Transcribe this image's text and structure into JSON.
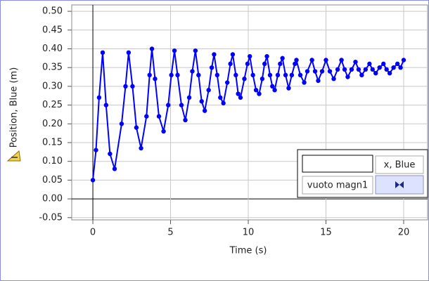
{
  "chart_data": {
    "type": "line",
    "x_label": "Time (s)",
    "y_label": "Position, Blue (m)",
    "xlim": [
      -1.36,
      21.54
    ],
    "ylim": [
      -0.056,
      0.517
    ],
    "xticks": [
      0,
      5,
      10,
      15,
      20
    ],
    "yticks": [
      {
        "value": -0.05,
        "label": "-0.05"
      },
      {
        "value": 0,
        "label": "0.00"
      },
      {
        "value": 0.05,
        "label": "0.05"
      },
      {
        "value": 0.1,
        "label": "0.10"
      },
      {
        "value": 0.15,
        "label": "0.15"
      },
      {
        "value": 0.2,
        "label": "0.20"
      },
      {
        "value": 0.25,
        "label": "0.25"
      },
      {
        "value": 0.3,
        "label": "0.30"
      },
      {
        "value": 0.35,
        "label": "0.35"
      },
      {
        "value": 0.4,
        "label": "0.40"
      },
      {
        "value": 0.45,
        "label": "0.45"
      },
      {
        "value": 0.5,
        "label": "0.50"
      }
    ],
    "grid": true,
    "x": [
      0,
      0.2,
      0.4,
      0.63,
      0.85,
      1.1,
      1.4,
      1.85,
      2.1,
      2.3,
      2.55,
      2.8,
      3.1,
      3.45,
      3.65,
      3.8,
      4.0,
      4.25,
      4.55,
      4.85,
      5.05,
      5.25,
      5.45,
      5.7,
      5.95,
      6.2,
      6.4,
      6.6,
      6.8,
      7.0,
      7.2,
      7.45,
      7.65,
      7.8,
      8.0,
      8.2,
      8.4,
      8.65,
      8.85,
      9.0,
      9.2,
      9.35,
      9.5,
      9.75,
      9.95,
      10.1,
      10.3,
      10.5,
      10.7,
      10.9,
      11.05,
      11.2,
      11.4,
      11.55,
      11.7,
      11.9,
      12.05,
      12.2,
      12.4,
      12.6,
      12.8,
      13.0,
      13.1,
      13.35,
      13.6,
      13.8,
      14.1,
      14.3,
      14.5,
      14.75,
      15.0,
      15.25,
      15.5,
      15.75,
      16.0,
      16.2,
      16.4,
      16.65,
      16.9,
      17.1,
      17.3,
      17.55,
      17.8,
      18.0,
      18.2,
      18.45,
      18.7,
      18.9,
      19.1,
      19.35,
      19.6,
      19.8,
      20.0
    ],
    "series": [
      {
        "name": "x, Blue",
        "color": "#0000ff",
        "values": [
          0.05,
          0.13,
          0.27,
          0.39,
          0.25,
          0.12,
          0.08,
          0.2,
          0.3,
          0.39,
          0.3,
          0.19,
          0.135,
          0.22,
          0.33,
          0.4,
          0.32,
          0.22,
          0.18,
          0.25,
          0.33,
          0.395,
          0.33,
          0.25,
          0.21,
          0.27,
          0.34,
          0.395,
          0.33,
          0.26,
          0.235,
          0.29,
          0.35,
          0.385,
          0.33,
          0.27,
          0.255,
          0.31,
          0.36,
          0.385,
          0.33,
          0.28,
          0.27,
          0.32,
          0.36,
          0.38,
          0.33,
          0.29,
          0.28,
          0.32,
          0.36,
          0.38,
          0.33,
          0.3,
          0.29,
          0.33,
          0.36,
          0.375,
          0.33,
          0.295,
          0.33,
          0.36,
          0.37,
          0.33,
          0.31,
          0.34,
          0.37,
          0.34,
          0.315,
          0.34,
          0.37,
          0.34,
          0.32,
          0.345,
          0.37,
          0.345,
          0.325,
          0.345,
          0.365,
          0.345,
          0.33,
          0.345,
          0.36,
          0.345,
          0.335,
          0.35,
          0.36,
          0.345,
          0.335,
          0.35,
          0.36,
          0.35,
          0.37
        ]
      }
    ]
  },
  "ui": {
    "dataset": "vuoto magn1"
  }
}
